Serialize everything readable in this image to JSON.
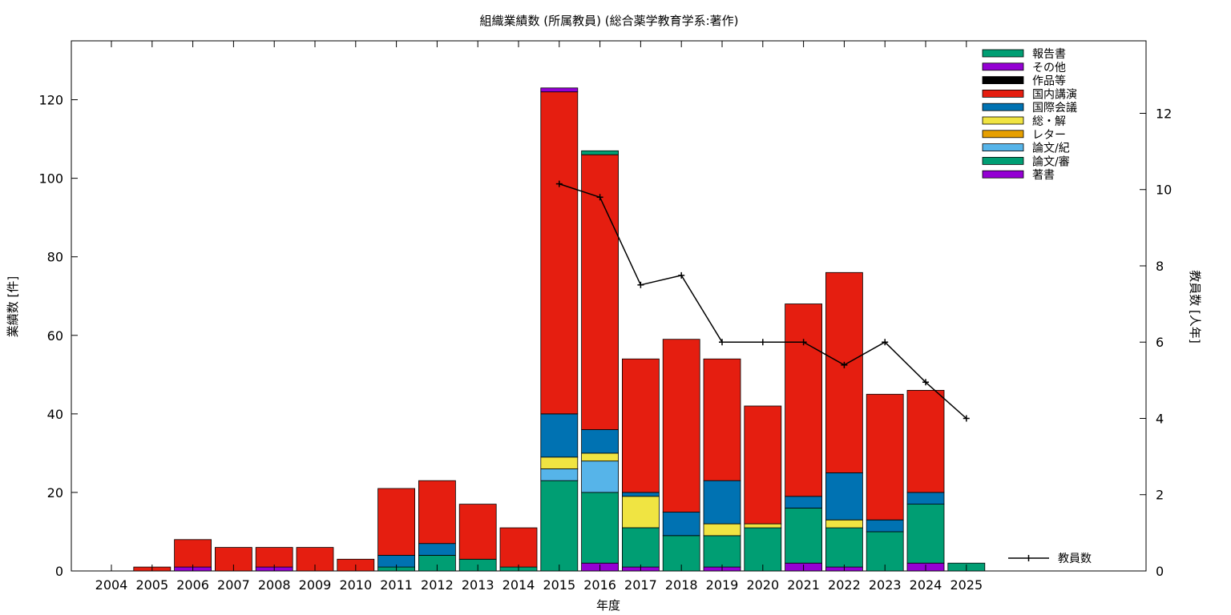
{
  "chart_data": {
    "type": "bar",
    "stacked": true,
    "title": "組織業績数 (所属教員) (総合薬学教育学系:著作)",
    "xlabel": "年度",
    "ylabel": "業績数 [件]",
    "y2label": "教員数 [人年]",
    "ylim": [
      0,
      135
    ],
    "y2lim": [
      0,
      13.9
    ],
    "yticks": [
      0,
      20,
      40,
      60,
      80,
      100,
      120
    ],
    "y2ticks": [
      0,
      2,
      4,
      6,
      8,
      10,
      12
    ],
    "legend_position": "top-right",
    "categories": [
      "2004",
      "2005",
      "2006",
      "2007",
      "2008",
      "2009",
      "2010",
      "2011",
      "2012",
      "2013",
      "2014",
      "2015",
      "2016",
      "2017",
      "2018",
      "2019",
      "2020",
      "2021",
      "2022",
      "2023",
      "2024",
      "2025"
    ],
    "series": [
      {
        "name": "著書",
        "color": "#9400d3",
        "values": [
          0,
          0,
          1,
          0,
          1,
          0,
          0,
          0,
          0,
          0,
          0,
          0,
          2,
          1,
          0,
          1,
          0,
          2,
          1,
          0,
          2,
          0
        ]
      },
      {
        "name": "論文/審",
        "color": "#009e73",
        "values": [
          0,
          0,
          0,
          0,
          0,
          0,
          0,
          1,
          4,
          3,
          1,
          23,
          18,
          10,
          9,
          8,
          11,
          14,
          10,
          10,
          15,
          0
        ]
      },
      {
        "name": "論文/紀",
        "color": "#56b4e9",
        "values": [
          0,
          0,
          0,
          0,
          0,
          0,
          0,
          0,
          0,
          0,
          0,
          3,
          8,
          0,
          0,
          0,
          0,
          0,
          0,
          0,
          0,
          0
        ]
      },
      {
        "name": "レター",
        "color": "#e69f00",
        "values": [
          0,
          0,
          0,
          0,
          0,
          0,
          0,
          0,
          0,
          0,
          0,
          0,
          0,
          0,
          0,
          0,
          0,
          0,
          0,
          0,
          0,
          0
        ]
      },
      {
        "name": "総・解",
        "color": "#f0e442",
        "values": [
          0,
          0,
          0,
          0,
          0,
          0,
          0,
          0,
          0,
          0,
          0,
          3,
          2,
          8,
          0,
          3,
          1,
          0,
          2,
          0,
          0,
          0
        ]
      },
      {
        "name": "国際会議",
        "color": "#0072b2",
        "values": [
          0,
          0,
          0,
          0,
          0,
          0,
          0,
          3,
          3,
          0,
          0,
          11,
          6,
          1,
          6,
          11,
          0,
          3,
          12,
          3,
          3,
          0
        ]
      },
      {
        "name": "国内講演",
        "color": "#e51e10",
        "values": [
          0,
          1,
          7,
          6,
          5,
          6,
          3,
          17,
          16,
          14,
          10,
          82,
          70,
          34,
          44,
          31,
          30,
          49,
          51,
          32,
          26,
          0
        ]
      },
      {
        "name": "作品等",
        "color": "#000000",
        "values": [
          0,
          0,
          0,
          0,
          0,
          0,
          0,
          0,
          0,
          0,
          0,
          0,
          0,
          0,
          0,
          0,
          0,
          0,
          0,
          0,
          0,
          0
        ]
      },
      {
        "name": "その他",
        "color": "#9400d3",
        "values": [
          0,
          0,
          0,
          0,
          0,
          0,
          0,
          0,
          0,
          0,
          0,
          1,
          0,
          0,
          0,
          0,
          0,
          0,
          0,
          0,
          0,
          0
        ]
      },
      {
        "name": "報告書",
        "color": "#009e73",
        "values": [
          0,
          0,
          0,
          0,
          0,
          0,
          0,
          0,
          0,
          0,
          0,
          0,
          1,
          0,
          0,
          0,
          0,
          0,
          0,
          0,
          0,
          2
        ]
      }
    ],
    "line": {
      "name": "教員数",
      "axis": "y2",
      "color": "#000000",
      "x": [
        "2015",
        "2016",
        "2017",
        "2018",
        "2019",
        "2020",
        "2021",
        "2022",
        "2023",
        "2024",
        "2025"
      ],
      "values": [
        10.15,
        9.8,
        7.5,
        7.75,
        6.0,
        6.0,
        6.0,
        5.4,
        6.0,
        4.95,
        4.0
      ]
    }
  }
}
